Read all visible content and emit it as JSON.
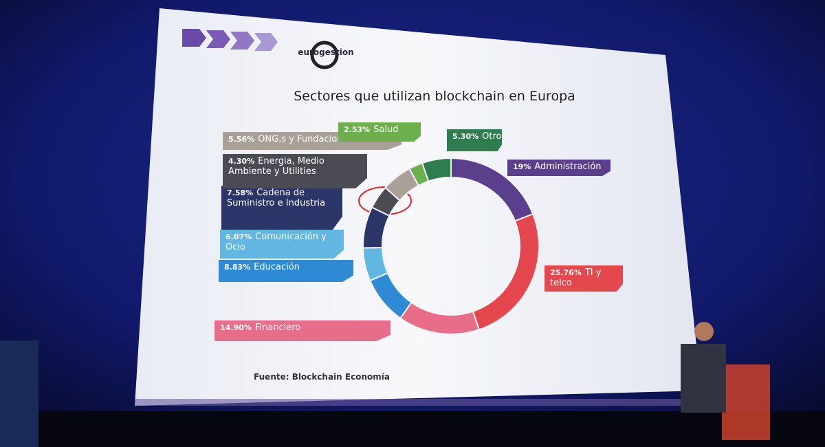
{
  "chart_data": {
    "type": "donut",
    "title": "Sectores que utilizan blockchain en Europa",
    "source": "Fuente: Blockchain Economía",
    "logo": "eurogestion",
    "categories": [
      "Administración",
      "TI y telco",
      "Financiero",
      "Educación",
      "Comunicación y Ocio",
      "Cadena de Suministro e Industria",
      "Energia, Medio Ambiente y Utilities",
      "ONG,s y Fundaciones",
      "Salud",
      "Otros"
    ],
    "values": [
      19,
      25.76,
      14.9,
      8.83,
      6.07,
      7.58,
      4.3,
      5.56,
      2.53,
      5.3
    ],
    "value_labels": [
      "19%",
      "25.76%",
      "14.90%",
      "8.83%",
      "6.07%",
      "7.58%",
      "4.30%",
      "5.56%",
      "2.53%",
      "5.30%"
    ],
    "colors": [
      "#5b3f8c",
      "#e4474d",
      "#e86d88",
      "#2f8ad6",
      "#62b6e2",
      "#2b3568",
      "#4a4b53",
      "#a9a097",
      "#6bb04d",
      "#2f7d4f"
    ]
  }
}
